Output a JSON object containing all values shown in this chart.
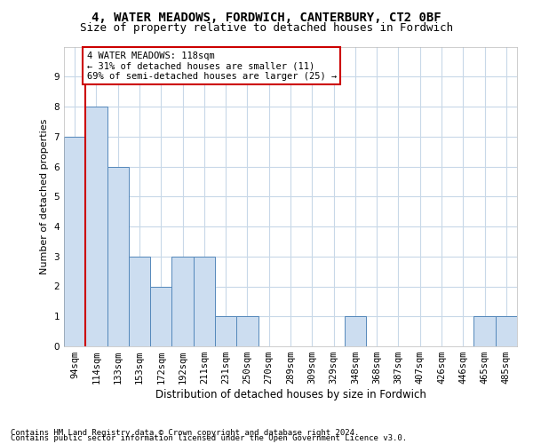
{
  "title": "4, WATER MEADOWS, FORDWICH, CANTERBURY, CT2 0BF",
  "subtitle": "Size of property relative to detached houses in Fordwich",
  "xlabel": "Distribution of detached houses by size in Fordwich",
  "ylabel": "Number of detached properties",
  "footnote1": "Contains HM Land Registry data © Crown copyright and database right 2024.",
  "footnote2": "Contains public sector information licensed under the Open Government Licence v3.0.",
  "categories": [
    "94sqm",
    "114sqm",
    "133sqm",
    "153sqm",
    "172sqm",
    "192sqm",
    "211sqm",
    "231sqm",
    "250sqm",
    "270sqm",
    "289sqm",
    "309sqm",
    "329sqm",
    "348sqm",
    "368sqm",
    "387sqm",
    "407sqm",
    "426sqm",
    "446sqm",
    "465sqm",
    "485sqm"
  ],
  "values": [
    7,
    8,
    6,
    3,
    2,
    3,
    3,
    1,
    1,
    0,
    0,
    0,
    0,
    1,
    0,
    0,
    0,
    0,
    0,
    1,
    1
  ],
  "bar_color": "#ccddf0",
  "bar_edge_color": "#5588bb",
  "subject_bar_index": 1,
  "subject_line_color": "#cc0000",
  "annotation_text": "4 WATER MEADOWS: 118sqm\n← 31% of detached houses are smaller (11)\n69% of semi-detached houses are larger (25) →",
  "annotation_box_edgecolor": "#cc0000",
  "annotation_box_facecolor": "#ffffff",
  "ylim": [
    0,
    10
  ],
  "yticks": [
    0,
    1,
    2,
    3,
    4,
    5,
    6,
    7,
    8,
    9
  ],
  "background_color": "#ffffff",
  "grid_color": "#c8d8e8",
  "title_fontsize": 10,
  "subtitle_fontsize": 9,
  "xlabel_fontsize": 8.5,
  "ylabel_fontsize": 8,
  "tick_fontsize": 7.5,
  "annotation_fontsize": 7.5,
  "footnote_fontsize": 6.5
}
